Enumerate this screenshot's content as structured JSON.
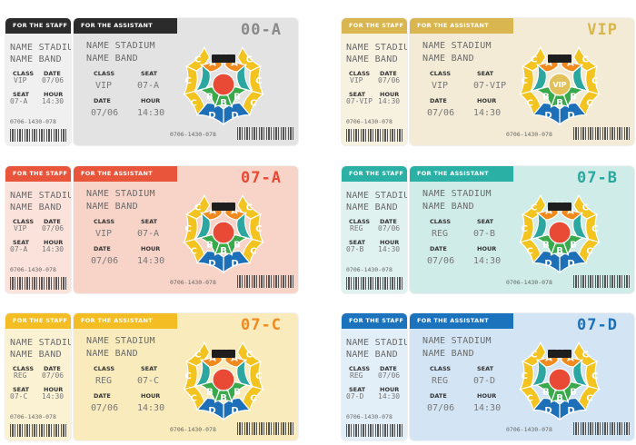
{
  "labels": {
    "staff": "FOR THE STAFF",
    "assistant": "FOR THE ASSISTANT",
    "stadium": "NAME STADIUM",
    "band": "NAME BAND",
    "class": "CLASS",
    "date": "DATE",
    "seat": "SEAT",
    "hour": "HOUR",
    "date_value": "07/06",
    "hour_value": "14:30",
    "phone": "0706-1430-078"
  },
  "seat_labels": {
    "a": "A",
    "b": "B",
    "c": "C",
    "d": "D",
    "vip": "VIP"
  },
  "colors": {
    "yellow": "#f3c320",
    "orange": "#f08a1e",
    "red": "#e84a35",
    "green": "#3aa94c",
    "teal": "#2ba7a0",
    "blue": "#1d6fb8",
    "stage": "#1e1e1e"
  },
  "tickets": [
    {
      "code": "00-A",
      "class_short": "VIP",
      "seat_short": "07-A",
      "class_value": "VIP",
      "seat_value": "07-A",
      "accent": "#8a8a8a",
      "stub_bg": "#f0f0f0",
      "main_bg": "#e3e3e3",
      "header": "#2b2b2b"
    },
    {
      "code": "VIP",
      "class_short": "VIP",
      "seat_short": "07-VIP",
      "class_value": "VIP",
      "seat_value": "07-VIP",
      "accent": "#d7b64a",
      "stub_bg": "#f7f1e0",
      "main_bg": "#f3ebd6",
      "header": "#d9b650"
    },
    {
      "code": "07-A",
      "class_short": "VIP",
      "seat_short": "07-A",
      "class_value": "VIP",
      "seat_value": "07-A",
      "accent": "#e84a35",
      "stub_bg": "#fbe3dc",
      "main_bg": "#f8d4c8",
      "header": "#e8553b"
    },
    {
      "code": "07-B",
      "class_short": "REG",
      "seat_short": "07-B",
      "class_value": "REG",
      "seat_value": "07-B",
      "accent": "#2ba7a0",
      "stub_bg": "#dff2ef",
      "main_bg": "#d0ece8",
      "header": "#2bb0a5"
    },
    {
      "code": "07-C",
      "class_short": "REG",
      "seat_short": "07-C",
      "class_value": "REG",
      "seat_value": "07-C",
      "accent": "#f08a1e",
      "stub_bg": "#fbf2d4",
      "main_bg": "#f9ebbc",
      "header": "#f4bd23"
    },
    {
      "code": "07-D",
      "class_short": "REG",
      "seat_short": "07-D",
      "class_value": "REG",
      "seat_value": "07-D",
      "accent": "#1d6fb8",
      "stub_bg": "#e2eef8",
      "main_bg": "#d3e5f4",
      "header": "#1b73be"
    }
  ]
}
